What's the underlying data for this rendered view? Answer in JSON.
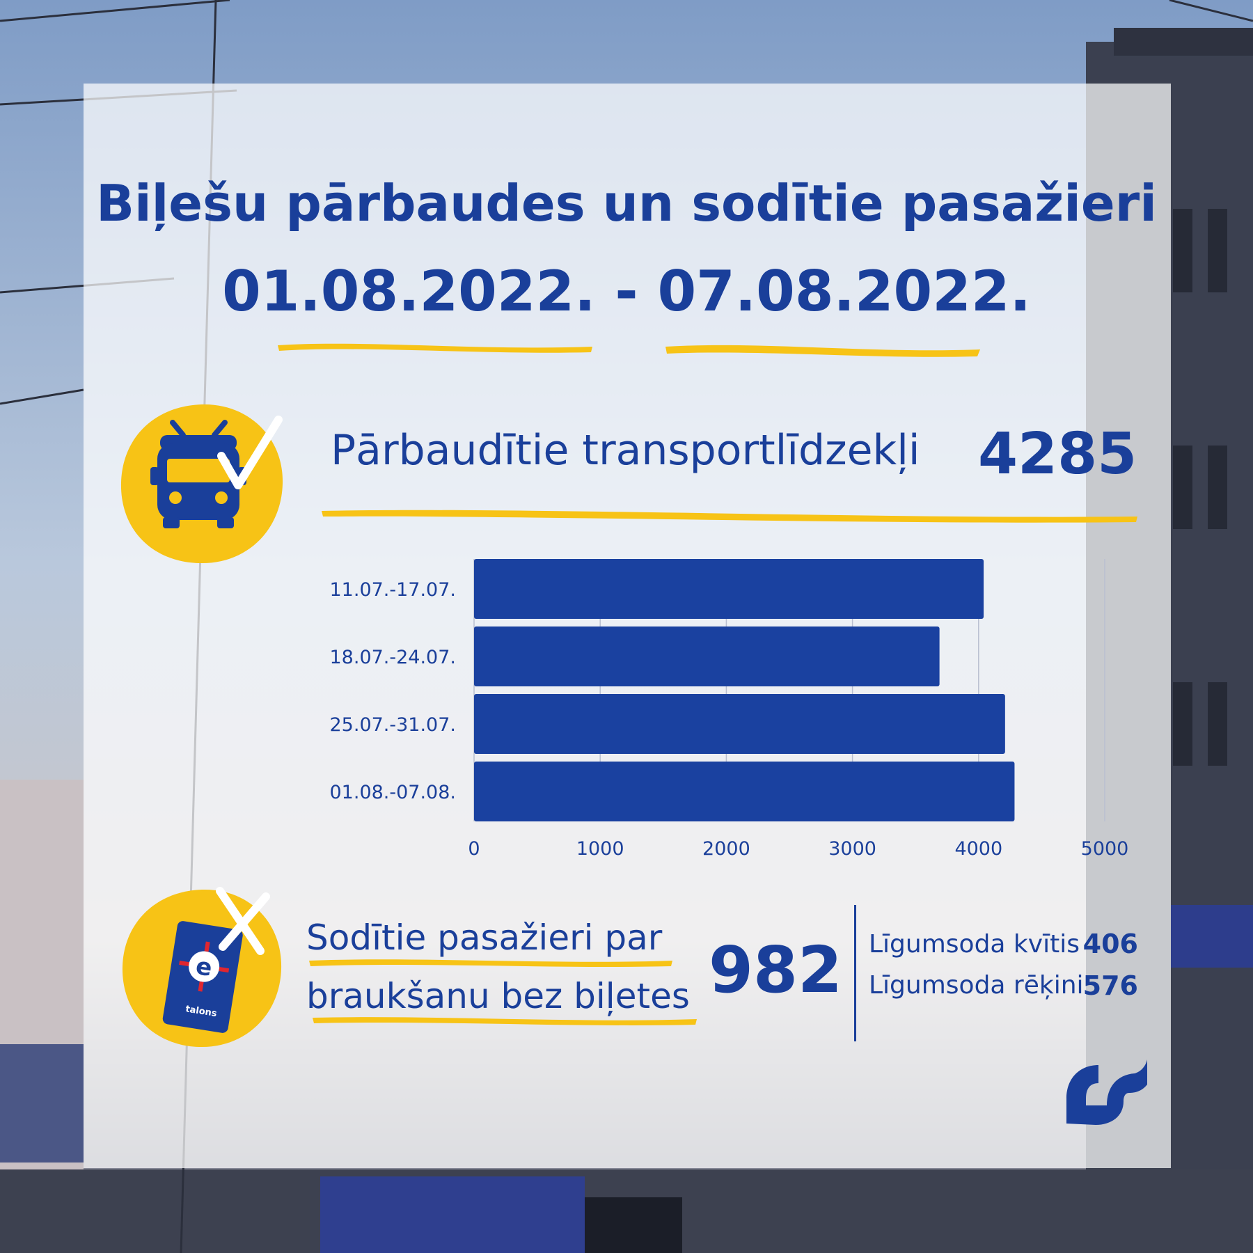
{
  "title": {
    "line1": "Biļešu pārbaudes un sodītie pasažieri",
    "line2": "01.08.2022. - 07.08.2022."
  },
  "inspected": {
    "label": "Pārbaudītie transportlīdzekļi",
    "value": "4285"
  },
  "fined": {
    "label_line1": "Sodītie pasažieri par",
    "label_line2": "braukšanu bez biļetes",
    "total": "982",
    "breakdown": [
      {
        "label": "Līgumsoda kvītis",
        "value": "406"
      },
      {
        "label": "Līgumsoda rēķini",
        "value": "576"
      }
    ]
  },
  "icons": {
    "vehicle": "trolleybus-icon",
    "check": "check-icon",
    "card": "etalons-card-icon",
    "cross": "cross-icon",
    "logo": "rigas-satiksme-logo",
    "card_text": "talons",
    "card_letter": "e"
  },
  "colors": {
    "brand_blue": "#1a3f9a",
    "bar_blue": "#1a41a0",
    "accent_yellow": "#f7c316"
  },
  "chart_data": {
    "type": "bar",
    "orientation": "horizontal",
    "categories": [
      "11.07.-17.07.",
      "18.07.-24.07.",
      "25.07.-31.07.",
      "01.08.-07.08."
    ],
    "values": [
      4040,
      3690,
      4210,
      4285
    ],
    "xlim": [
      0,
      5000
    ],
    "xticks": [
      0,
      1000,
      2000,
      3000,
      4000,
      5000
    ],
    "grid": true,
    "legend": "none"
  }
}
